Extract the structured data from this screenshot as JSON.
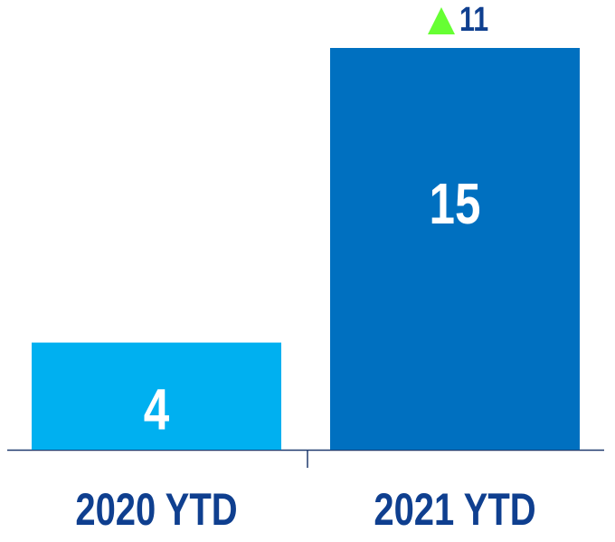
{
  "chart_data": {
    "type": "bar",
    "categories": [
      "2020 YTD",
      "2021 YTD"
    ],
    "values": [
      4,
      15
    ],
    "colors": [
      "#00b0f0",
      "#0070c0"
    ],
    "change": 11,
    "change_color": "#66ff33"
  }
}
